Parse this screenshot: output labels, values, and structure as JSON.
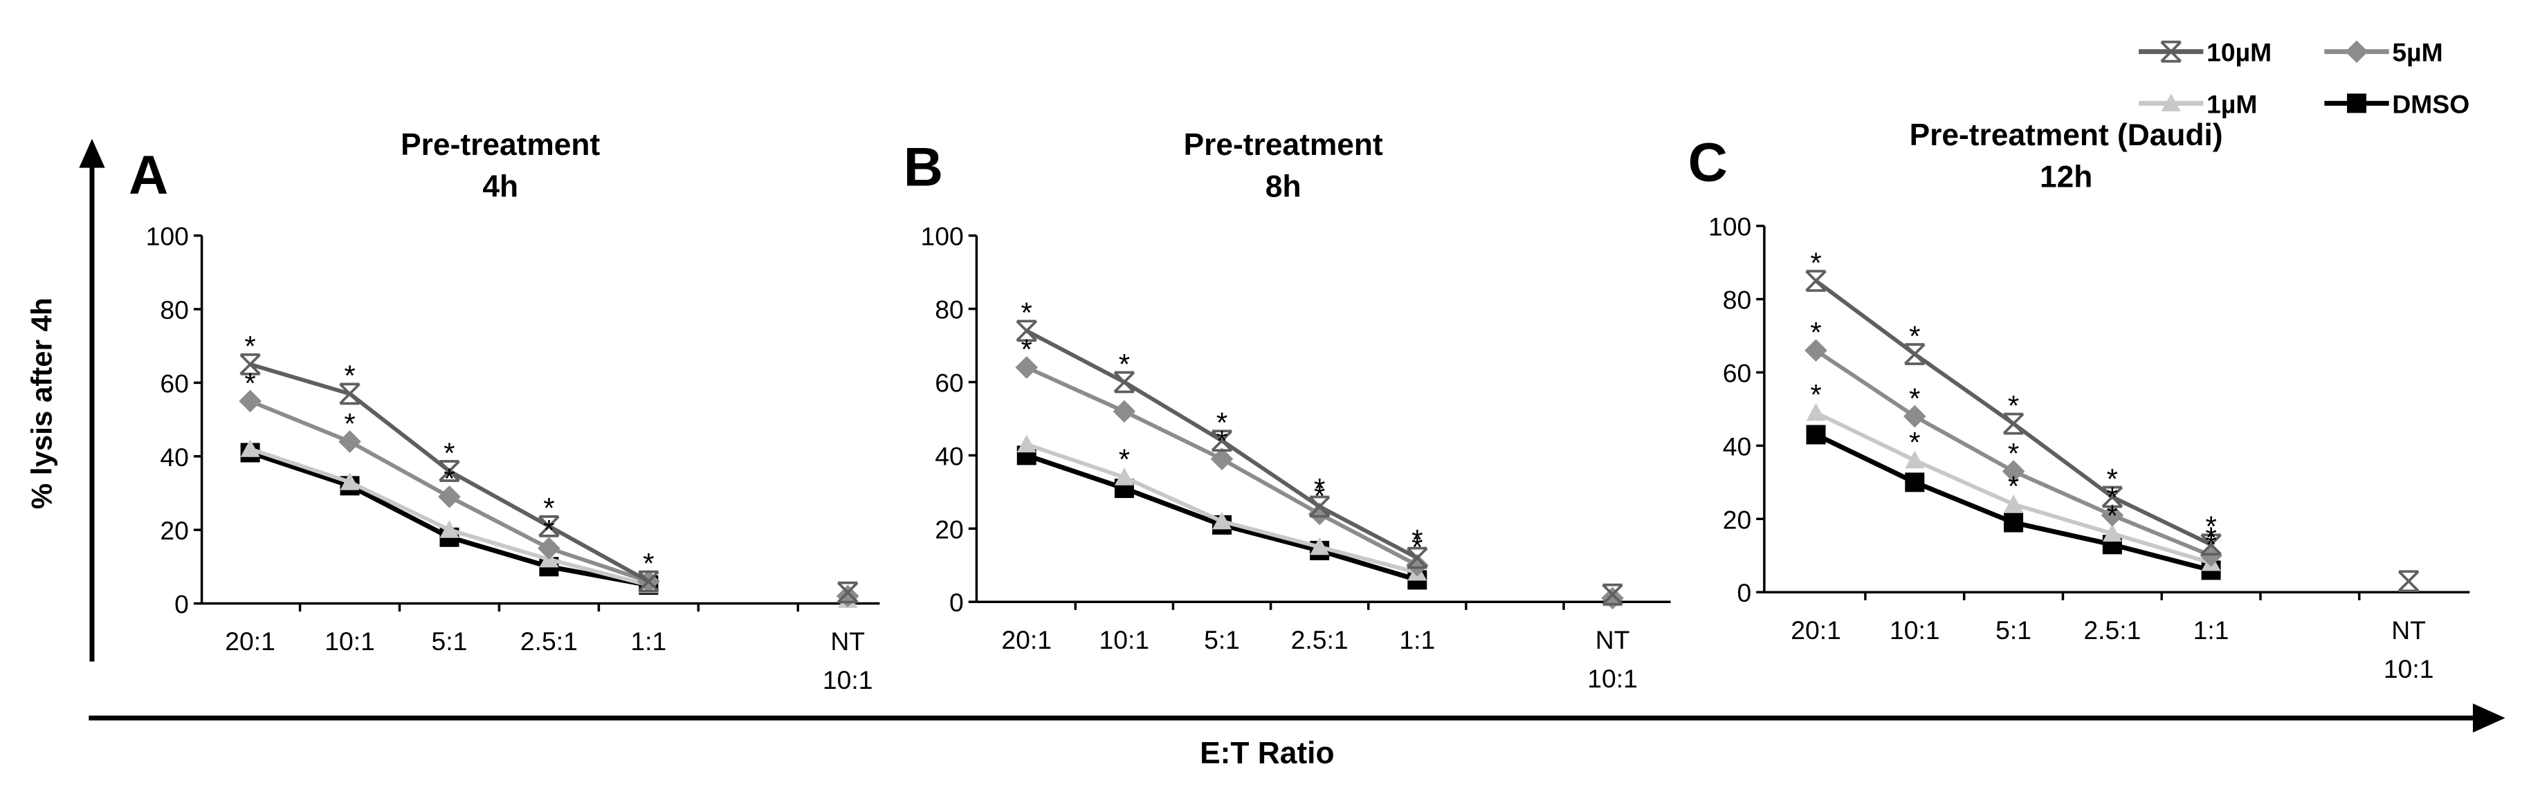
{
  "y_label": "% lysis after 4h",
  "x_label": "E:T Ratio",
  "chart_data": [
    {
      "type": "line",
      "panel": "A",
      "title": "Pre-treatment",
      "subtitle": "4h",
      "categories": [
        "20:1",
        "10:1",
        "5:1",
        "2.5:1",
        "1:1",
        null,
        "NT 10:1"
      ],
      "ylim": [
        0,
        100
      ],
      "yticks": [
        0,
        20,
        40,
        60,
        80,
        100
      ],
      "series": [
        {
          "name": "10µM",
          "color": "#5f5f5f",
          "marker": "x",
          "values": [
            65,
            57,
            36,
            21,
            6,
            null,
            3
          ],
          "annotations": [
            "*",
            "*",
            "*",
            "*",
            "*",
            null,
            null
          ]
        },
        {
          "name": "5µM",
          "color": "#8c8c8c",
          "marker": "diamond",
          "values": [
            55,
            44,
            29,
            15,
            6,
            null,
            2
          ],
          "annotations": [
            "*",
            "*",
            "*",
            "*",
            null,
            null,
            null
          ]
        },
        {
          "name": "1µM",
          "color": "#c8c8c8",
          "marker": "triangle",
          "values": [
            42,
            33,
            20,
            12,
            5,
            null,
            1
          ],
          "annotations": [
            null,
            null,
            null,
            null,
            null,
            null,
            null
          ]
        },
        {
          "name": "DMSO",
          "color": "#000000",
          "marker": "square",
          "values": [
            41,
            32,
            18,
            10,
            5,
            null,
            null
          ],
          "annotations": [
            null,
            null,
            null,
            null,
            null,
            null,
            null
          ]
        }
      ]
    },
    {
      "type": "line",
      "panel": "B",
      "title": "Pre-treatment",
      "subtitle": "8h",
      "categories": [
        "20:1",
        "10:1",
        "5:1",
        "2.5:1",
        "1:1",
        null,
        "NT 10:1"
      ],
      "ylim": [
        0,
        100
      ],
      "yticks": [
        0,
        20,
        40,
        60,
        80,
        100
      ],
      "series": [
        {
          "values": [
            74,
            60,
            44,
            26,
            12,
            null,
            2
          ],
          "annotations": [
            "*",
            "*",
            "*",
            "*",
            "*",
            null,
            null
          ]
        },
        {
          "values": [
            64,
            52,
            39,
            24,
            10,
            null,
            1
          ],
          "annotations": [
            "*",
            null,
            "*",
            "*",
            "*",
            null,
            null
          ]
        },
        {
          "values": [
            43,
            34,
            22,
            15,
            8,
            null,
            1
          ],
          "annotations": [
            null,
            "*",
            null,
            null,
            null,
            null,
            null
          ]
        },
        {
          "values": [
            40,
            31,
            21,
            14,
            6,
            null,
            null
          ],
          "annotations": [
            null,
            null,
            null,
            null,
            null,
            null,
            null
          ]
        }
      ]
    },
    {
      "type": "line",
      "panel": "C",
      "title": "Pre-treatment (Daudi)",
      "subtitle": "12h",
      "categories": [
        "20:1",
        "10:1",
        "5:1",
        "2.5:1",
        "1:1",
        null,
        "NT 10:1"
      ],
      "ylim": [
        0,
        100
      ],
      "yticks": [
        0,
        20,
        40,
        60,
        80,
        100
      ],
      "series": [
        {
          "values": [
            85,
            65,
            46,
            26,
            13,
            null,
            3
          ],
          "annotations": [
            "*",
            "*",
            "*",
            "*",
            "*",
            null,
            null
          ]
        },
        {
          "values": [
            66,
            48,
            33,
            21,
            10,
            null,
            null
          ],
          "annotations": [
            "*",
            "*",
            "*",
            "*",
            "*",
            null,
            null
          ]
        },
        {
          "values": [
            49,
            36,
            24,
            16,
            8,
            null,
            null
          ],
          "annotations": [
            "*",
            "*",
            "*",
            "*",
            "*",
            null,
            null
          ]
        },
        {
          "values": [
            43,
            30,
            19,
            13,
            6,
            null,
            null
          ],
          "annotations": [
            null,
            null,
            null,
            null,
            null,
            null,
            null
          ]
        }
      ]
    }
  ]
}
